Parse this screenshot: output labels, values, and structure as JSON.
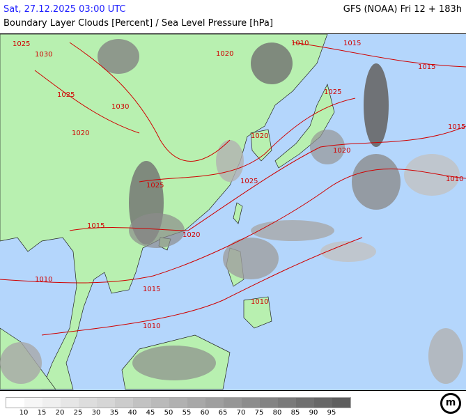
{
  "header": {
    "datetime": "Sat, 27.12.2025 03:00 UTC",
    "title": "Boundary Layer Clouds [Percent] / Sea Level Pressure [hPa]",
    "model": "GFS (NOAA) Fri 12 + 183h"
  },
  "colors": {
    "land": "#b8f0b0",
    "ocean": "#b4d6fc",
    "isobar": "#d00000",
    "datetime": "#2020ff"
  },
  "isobar_labels": [
    "1025",
    "1030",
    "1020",
    "1015",
    "1010",
    "1025",
    "1020",
    "1015",
    "1010",
    "1025",
    "1030",
    "1020",
    "1025",
    "1020",
    "1015",
    "1010",
    "1015",
    "1010",
    "1020",
    "1025",
    "1015",
    "1010"
  ],
  "legend": {
    "labels": [
      "10",
      "15",
      "20",
      "25",
      "30",
      "35",
      "40",
      "45",
      "50",
      "55",
      "60",
      "65",
      "70",
      "75",
      "80",
      "85",
      "90",
      "95"
    ],
    "colors": [
      "#ffffff",
      "#f6f6f6",
      "#efefef",
      "#e6e6e6",
      "#dddddd",
      "#d6d6d6",
      "#cccccc",
      "#c2c2c2",
      "#bababa",
      "#b1b1b1",
      "#a8a8a8",
      "#9f9f9f",
      "#969696",
      "#8c8c8c",
      "#838383",
      "#7a7a7a",
      "#707070",
      "#676767",
      "#5e5e5e"
    ]
  },
  "logo": "m"
}
